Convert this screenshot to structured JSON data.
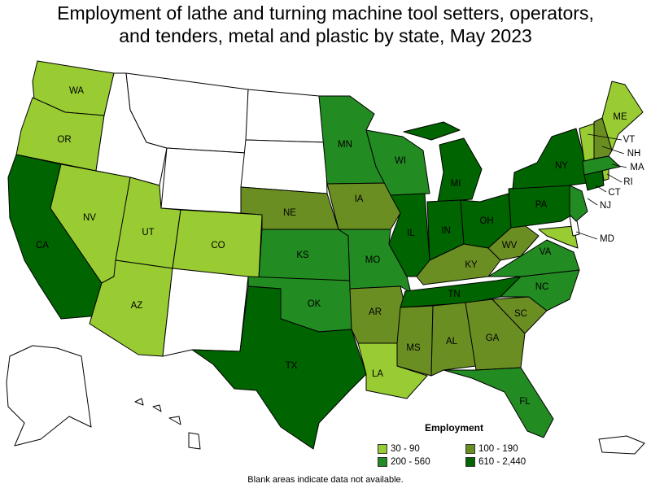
{
  "title_line1": "Employment of lathe and turning machine tool setters, operators,",
  "title_line2": "and tenders, metal and plastic by state, May 2023",
  "legend": {
    "title": "Employment",
    "items": [
      {
        "label": "30 - 90",
        "color": "#99cc33"
      },
      {
        "label": "100 - 190",
        "color": "#6b8e23"
      },
      {
        "label": "200 - 560",
        "color": "#228b22"
      },
      {
        "label": "610 - 2,440",
        "color": "#006400"
      }
    ]
  },
  "footnote": "Blank areas indicate data not available.",
  "states": [
    {
      "code": "WA",
      "label": "WA",
      "class": 0
    },
    {
      "code": "OR",
      "label": "OR",
      "class": 0
    },
    {
      "code": "CA",
      "label": "CA",
      "class": 3
    },
    {
      "code": "NV",
      "label": "NV",
      "class": 0
    },
    {
      "code": "ID",
      "label": "",
      "class": null
    },
    {
      "code": "MT",
      "label": "",
      "class": null
    },
    {
      "code": "WY",
      "label": "",
      "class": null
    },
    {
      "code": "UT",
      "label": "UT",
      "class": 0
    },
    {
      "code": "AZ",
      "label": "AZ",
      "class": 0
    },
    {
      "code": "CO",
      "label": "CO",
      "class": 0
    },
    {
      "code": "NM",
      "label": "",
      "class": null
    },
    {
      "code": "ND",
      "label": "",
      "class": null
    },
    {
      "code": "SD",
      "label": "",
      "class": null
    },
    {
      "code": "NE",
      "label": "NE",
      "class": 1
    },
    {
      "code": "KS",
      "label": "KS",
      "class": 2
    },
    {
      "code": "OK",
      "label": "OK",
      "class": 2
    },
    {
      "code": "TX",
      "label": "TX",
      "class": 3
    },
    {
      "code": "MN",
      "label": "MN",
      "class": 2
    },
    {
      "code": "IA",
      "label": "IA",
      "class": 1
    },
    {
      "code": "MO",
      "label": "MO",
      "class": 2
    },
    {
      "code": "AR",
      "label": "AR",
      "class": 1
    },
    {
      "code": "LA",
      "label": "LA",
      "class": 0
    },
    {
      "code": "WI",
      "label": "WI",
      "class": 2
    },
    {
      "code": "IL",
      "label": "IL",
      "class": 3
    },
    {
      "code": "MI",
      "label": "MI",
      "class": 3
    },
    {
      "code": "IN",
      "label": "IN",
      "class": 3
    },
    {
      "code": "OH",
      "label": "OH",
      "class": 3
    },
    {
      "code": "KY",
      "label": "KY",
      "class": 1
    },
    {
      "code": "TN",
      "label": "TN",
      "class": 3
    },
    {
      "code": "MS",
      "label": "MS",
      "class": 1
    },
    {
      "code": "AL",
      "label": "AL",
      "class": 1
    },
    {
      "code": "GA",
      "label": "GA",
      "class": 1
    },
    {
      "code": "FL",
      "label": "FL",
      "class": 2
    },
    {
      "code": "SC",
      "label": "SC",
      "class": 1
    },
    {
      "code": "NC",
      "label": "NC",
      "class": 2
    },
    {
      "code": "VA",
      "label": "VA",
      "class": 2
    },
    {
      "code": "WV",
      "label": "WV",
      "class": 1
    },
    {
      "code": "PA",
      "label": "PA",
      "class": 3
    },
    {
      "code": "NY",
      "label": "NY",
      "class": 3
    },
    {
      "code": "NJ",
      "label": "NJ",
      "class": 2
    },
    {
      "code": "DE",
      "label": "",
      "class": null
    },
    {
      "code": "MD",
      "label": "MD",
      "class": 0
    },
    {
      "code": "CT",
      "label": "CT",
      "class": 3
    },
    {
      "code": "RI",
      "label": "RI",
      "class": 0
    },
    {
      "code": "MA",
      "label": "MA",
      "class": 2
    },
    {
      "code": "VT",
      "label": "VT",
      "class": 0
    },
    {
      "code": "NH",
      "label": "NH",
      "class": 1
    },
    {
      "code": "ME",
      "label": "ME",
      "class": 0
    },
    {
      "code": "AK",
      "label": "",
      "class": null
    },
    {
      "code": "HI",
      "label": "",
      "class": null
    },
    {
      "code": "PR",
      "label": "",
      "class": null
    }
  ]
}
